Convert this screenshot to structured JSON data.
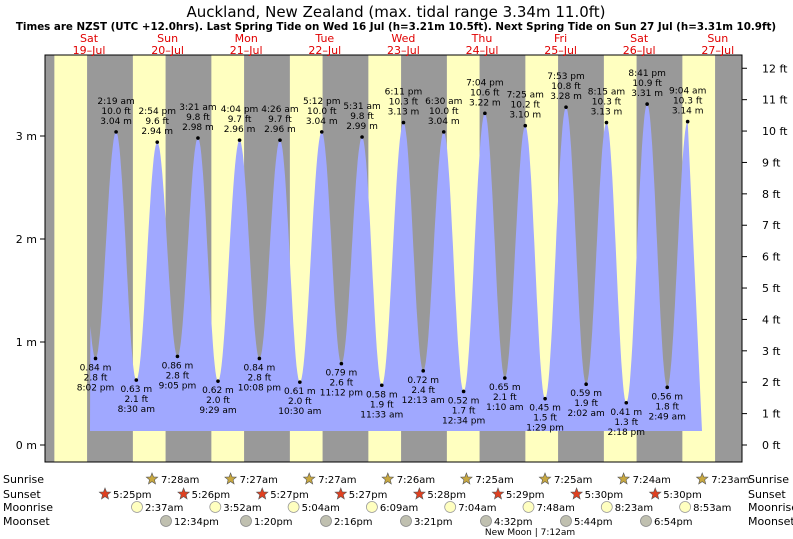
{
  "header": {
    "title": "Auckland, New Zealand (max. tidal range 3.34m 11.0ft)",
    "subtitle": "Times are NZST (UTC +12.0hrs). Last Spring Tide on Wed 16 Jul (h=3.21m 10.5ft). Next Spring Tide on Sun 27 Jul (h=3.31m 10.9ft)"
  },
  "days": [
    {
      "name": "Sat",
      "date": "19–Jul"
    },
    {
      "name": "Sun",
      "date": "20–Jul"
    },
    {
      "name": "Mon",
      "date": "21–Jul"
    },
    {
      "name": "Tue",
      "date": "22–Jul"
    },
    {
      "name": "Wed",
      "date": "23–Jul"
    },
    {
      "name": "Thu",
      "date": "24–Jul"
    },
    {
      "name": "Fri",
      "date": "25–Jul"
    },
    {
      "name": "Sat",
      "date": "26–Jul"
    },
    {
      "name": "Sun",
      "date": "27–Jul"
    }
  ],
  "chart_data": {
    "type": "area",
    "y_left_label_unit": "m",
    "y_left_ticks": [
      "0 m",
      "1 m",
      "2 m",
      "3 m"
    ],
    "y_right_ticks": [
      "0 ft",
      "1 ft",
      "2 ft",
      "3 ft",
      "4 ft",
      "5 ft",
      "6 ft",
      "7 ft",
      "8 ft",
      "9 ft",
      "10 ft",
      "11 ft",
      "12 ft"
    ],
    "ylim_m": [
      -0.1,
      3.75
    ],
    "tides": [
      {
        "type": "low",
        "m": "0.84 m",
        "ft": "2.8 ft",
        "time": "8:02 pm",
        "h": 0.84,
        "day": 0,
        "hr": 20.03
      },
      {
        "type": "high",
        "time": "2:19 am",
        "ft": "10.0 ft",
        "m": "3.04 m",
        "h": 3.04,
        "day": 1,
        "hr": 2.32
      },
      {
        "type": "low",
        "m": "0.63 m",
        "ft": "2.1 ft",
        "time": "8:30 am",
        "h": 0.63,
        "day": 1,
        "hr": 8.5
      },
      {
        "type": "high",
        "time": "2:54 pm",
        "ft": "9.6 ft",
        "m": "2.94 m",
        "h": 2.94,
        "day": 1,
        "hr": 14.9
      },
      {
        "type": "low",
        "m": "0.86 m",
        "ft": "2.8 ft",
        "time": "9:05 pm",
        "h": 0.86,
        "day": 1,
        "hr": 21.08
      },
      {
        "type": "high",
        "time": "3:21 am",
        "ft": "9.8 ft",
        "m": "2.98 m",
        "h": 2.98,
        "day": 2,
        "hr": 3.35
      },
      {
        "type": "low",
        "m": "0.62 m",
        "ft": "2.0 ft",
        "time": "9:29 am",
        "h": 0.62,
        "day": 2,
        "hr": 9.48
      },
      {
        "type": "high",
        "time": "4:04 pm",
        "ft": "9.7 ft",
        "m": "2.96 m",
        "h": 2.96,
        "day": 2,
        "hr": 16.07
      },
      {
        "type": "low",
        "m": "0.84 m",
        "ft": "2.8 ft",
        "time": "10:08 pm",
        "h": 0.84,
        "day": 2,
        "hr": 22.13
      },
      {
        "type": "high",
        "time": "4:26 am",
        "ft": "9.7 ft",
        "m": "2.96 m",
        "h": 2.96,
        "day": 3,
        "hr": 4.43
      },
      {
        "type": "low",
        "m": "0.61 m",
        "ft": "2.0 ft",
        "time": "10:30 am",
        "h": 0.61,
        "day": 3,
        "hr": 10.5
      },
      {
        "type": "high",
        "time": "5:12 pm",
        "ft": "10.0 ft",
        "m": "3.04 m",
        "h": 3.04,
        "day": 3,
        "hr": 17.2
      },
      {
        "type": "low",
        "m": "0.79 m",
        "ft": "2.6 ft",
        "time": "11:12 pm",
        "h": 0.79,
        "day": 3,
        "hr": 23.2
      },
      {
        "type": "high",
        "time": "5:31 am",
        "ft": "9.8 ft",
        "m": "2.99 m",
        "h": 2.99,
        "day": 4,
        "hr": 5.52
      },
      {
        "type": "low",
        "m": "0.58 m",
        "ft": "1.9 ft",
        "time": "11:33 am",
        "h": 0.58,
        "day": 4,
        "hr": 11.55
      },
      {
        "type": "high",
        "time": "6:11 pm",
        "ft": "10.3 ft",
        "m": "3.13 m",
        "h": 3.13,
        "day": 4,
        "hr": 18.18
      },
      {
        "type": "low",
        "m": "0.72 m",
        "ft": "2.4 ft",
        "time": "12:13 am",
        "h": 0.72,
        "day": 5,
        "hr": 0.22
      },
      {
        "type": "high",
        "time": "6:30 am",
        "ft": "10.0 ft",
        "m": "3.04 m",
        "h": 3.04,
        "day": 5,
        "hr": 6.5
      },
      {
        "type": "low",
        "m": "0.52 m",
        "ft": "1.7 ft",
        "time": "12:34 pm",
        "h": 0.52,
        "day": 5,
        "hr": 12.57
      },
      {
        "type": "high",
        "time": "7:04 pm",
        "ft": "10.6 ft",
        "m": "3.22 m",
        "h": 3.22,
        "day": 5,
        "hr": 19.07
      },
      {
        "type": "low",
        "m": "0.65 m",
        "ft": "2.1 ft",
        "time": "1:10 am",
        "h": 0.65,
        "day": 6,
        "hr": 1.17
      },
      {
        "type": "high",
        "time": "7:25 am",
        "ft": "10.2 ft",
        "m": "3.10 m",
        "h": 3.1,
        "day": 6,
        "hr": 7.42
      },
      {
        "type": "low",
        "m": "0.45 m",
        "ft": "1.5 ft",
        "time": "1:29 pm",
        "h": 0.45,
        "day": 6,
        "hr": 13.48
      },
      {
        "type": "high",
        "time": "7:53 pm",
        "ft": "10.8 ft",
        "m": "3.28 m",
        "h": 3.28,
        "day": 6,
        "hr": 19.88
      },
      {
        "type": "low",
        "m": "0.59 m",
        "ft": "1.9 ft",
        "time": "2:02 am",
        "h": 0.59,
        "day": 7,
        "hr": 2.03
      },
      {
        "type": "high",
        "time": "8:15 am",
        "ft": "10.3 ft",
        "m": "3.13 m",
        "h": 3.13,
        "day": 7,
        "hr": 8.25
      },
      {
        "type": "low",
        "m": "0.41 m",
        "ft": "1.3 ft",
        "time": "2:18 pm",
        "h": 0.41,
        "day": 7,
        "hr": 14.3
      },
      {
        "type": "high",
        "time": "8:41 pm",
        "ft": "10.9 ft",
        "m": "3.31 m",
        "h": 3.31,
        "day": 7,
        "hr": 20.68
      },
      {
        "type": "low",
        "m": "0.56 m",
        "ft": "1.8 ft",
        "time": "2:49 am",
        "h": 0.56,
        "day": 8,
        "hr": 2.82
      },
      {
        "type": "high",
        "time": "9:04 am",
        "ft": "10.3 ft",
        "m": "3.14 m",
        "h": 3.14,
        "day": 8,
        "hr": 9.07
      }
    ]
  },
  "bottom": {
    "row_labels": [
      "Sunrise",
      "Sunset",
      "Moonrise",
      "Moonset"
    ],
    "sunrise": [
      "",
      "7:28am",
      "7:27am",
      "7:27am",
      "7:26am",
      "7:25am",
      "7:25am",
      "7:24am",
      "7:23am"
    ],
    "sunset": [
      "5:25pm",
      "5:26pm",
      "5:27pm",
      "5:27pm",
      "5:28pm",
      "5:29pm",
      "5:30pm",
      "5:30pm",
      ""
    ],
    "moonrise": [
      "2:37am",
      "3:52am",
      "5:04am",
      "6:09am",
      "7:04am",
      "7:48am",
      "8:23am",
      "8:53am"
    ],
    "moonset": [
      "12:34pm",
      "1:20pm",
      "2:16pm",
      "3:21pm",
      "4:32pm",
      "5:44pm",
      "6:54pm"
    ],
    "new_moon": "New Moon | 7:12am"
  },
  "colors": {
    "day_bg": "#ffffc0",
    "night_bg": "#999999",
    "tide_fill": "#a0a8ff",
    "date_red": "#e00000",
    "frame": "#000000"
  }
}
